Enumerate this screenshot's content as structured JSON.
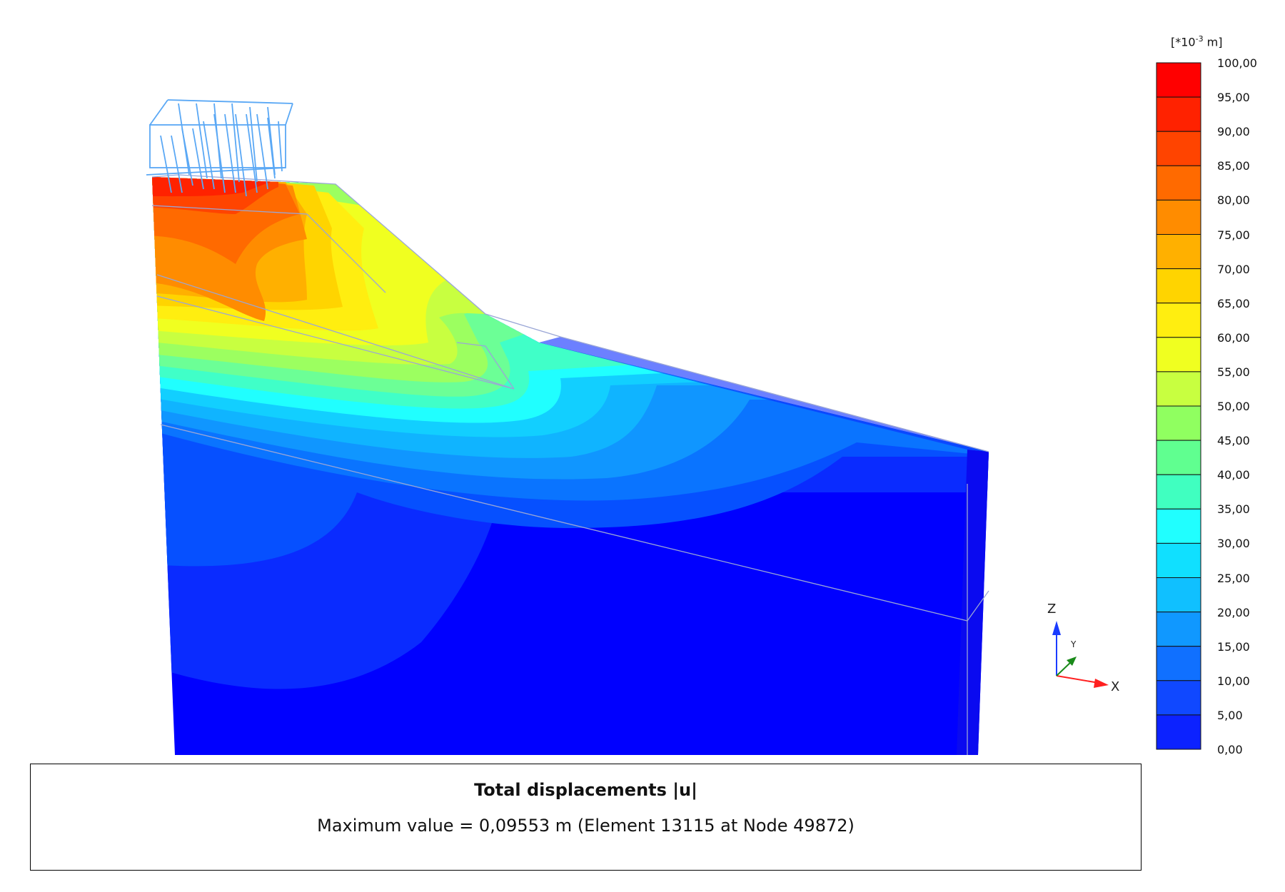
{
  "legend": {
    "unit_prefix": "[*10",
    "unit_exponent": "-3",
    "unit_suffix": " m]",
    "ticks": [
      "100,00",
      "95,00",
      "90,00",
      "85,00",
      "80,00",
      "75,00",
      "70,00",
      "65,00",
      "60,00",
      "55,00",
      "50,00",
      "45,00",
      "40,00",
      "35,00",
      "30,00",
      "25,00",
      "20,00",
      "15,00",
      "10,00",
      "5,00",
      "0,00"
    ],
    "colors": [
      "#ff0000",
      "#ff2200",
      "#ff4400",
      "#ff6a00",
      "#ff8c00",
      "#ffb000",
      "#ffd400",
      "#ffee10",
      "#f0ff20",
      "#c8ff40",
      "#90ff60",
      "#60ff90",
      "#40ffc0",
      "#20ffff",
      "#10e0ff",
      "#10c0ff",
      "#1098ff",
      "#1070ff",
      "#1048ff",
      "#0c22ff"
    ]
  },
  "axes": {
    "z": "Z",
    "y": "Y",
    "x": "X"
  },
  "caption": {
    "title": "Total displacements |u|",
    "subtitle": "Maximum value = 0,09553 m (Element 13115 at Node 49872)"
  }
}
